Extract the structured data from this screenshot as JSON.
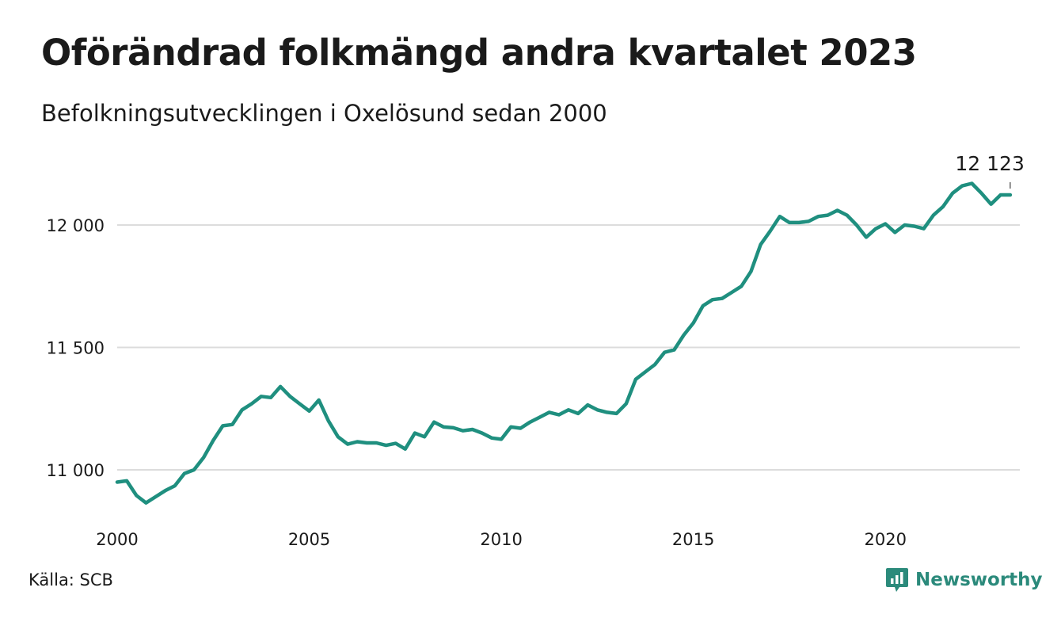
{
  "title": "Oförändrad folkmängd andra kvartalet 2023",
  "subtitle": "Befolkningsutvecklingen i Oxelösund sedan 2000",
  "source": "Källa: SCB",
  "brand": "Newsworthy",
  "colors": {
    "line": "#1f8f7f",
    "grid": "#dcdcdc",
    "brand": "#2b8a7b"
  },
  "chart_data": {
    "type": "line",
    "xlim": [
      2000,
      2023.5
    ],
    "ylim": [
      10800,
      12250
    ],
    "x_ticks": [
      2000,
      2005,
      2010,
      2015,
      2020
    ],
    "x_tick_labels": [
      "2000",
      "2005",
      "2010",
      "2015",
      "2020"
    ],
    "y_ticks": [
      11000,
      11500,
      12000
    ],
    "y_tick_labels": [
      "11 000",
      "11 500",
      "12 000"
    ],
    "grid": true,
    "end_label": "12 123",
    "series": [
      {
        "x": [
          2000.0,
          2000.25,
          2000.5,
          2000.75,
          2001.0,
          2001.25,
          2001.5,
          2001.75,
          2002.0,
          2002.25,
          2002.5,
          2002.75,
          2003.0,
          2003.25,
          2003.5,
          2003.75,
          2004.0,
          2004.25,
          2004.5,
          2004.75,
          2005.0,
          2005.25,
          2005.5,
          2005.75,
          2006.0,
          2006.25,
          2006.5,
          2006.75,
          2007.0,
          2007.25,
          2007.5,
          2007.75,
          2008.0,
          2008.25,
          2008.5,
          2008.75,
          2009.0,
          2009.25,
          2009.5,
          2009.75,
          2010.0,
          2010.25,
          2010.5,
          2010.75,
          2011.0,
          2011.25,
          2011.5,
          2011.75,
          2012.0,
          2012.25,
          2012.5,
          2012.75,
          2013.0,
          2013.25,
          2013.5,
          2013.75,
          2014.0,
          2014.25,
          2014.5,
          2014.75,
          2015.0,
          2015.25,
          2015.5,
          2015.75,
          2016.0,
          2016.25,
          2016.5,
          2016.75,
          2017.0,
          2017.25,
          2017.5,
          2017.75,
          2018.0,
          2018.25,
          2018.5,
          2018.75,
          2019.0,
          2019.25,
          2019.5,
          2019.75,
          2020.0,
          2020.25,
          2020.5,
          2020.75,
          2021.0,
          2021.25,
          2021.5,
          2021.75,
          2022.0,
          2022.25,
          2022.5,
          2022.75,
          2023.0,
          2023.25
        ],
        "values": [
          10950,
          10955,
          10895,
          10865,
          10890,
          10915,
          10935,
          10985,
          11000,
          11050,
          11120,
          11180,
          11185,
          11245,
          11270,
          11300,
          11295,
          11340,
          11300,
          11270,
          11240,
          11285,
          11200,
          11135,
          11105,
          11115,
          11110,
          11110,
          11100,
          11108,
          11085,
          11150,
          11135,
          11195,
          11175,
          11172,
          11160,
          11165,
          11150,
          11130,
          11125,
          11175,
          11170,
          11195,
          11215,
          11235,
          11225,
          11245,
          11230,
          11265,
          11245,
          11235,
          11230,
          11270,
          11370,
          11400,
          11430,
          11480,
          11490,
          11550,
          11600,
          11670,
          11695,
          11700,
          11725,
          11750,
          11810,
          11920,
          11975,
          12035,
          12010,
          12010,
          12015,
          12035,
          12040,
          12060,
          12040,
          12000,
          11950,
          11985,
          12005,
          11970,
          12000,
          11995,
          11985,
          12040,
          12075,
          12130,
          12160,
          12170,
          12130,
          12085,
          12123,
          12123
        ]
      }
    ]
  }
}
